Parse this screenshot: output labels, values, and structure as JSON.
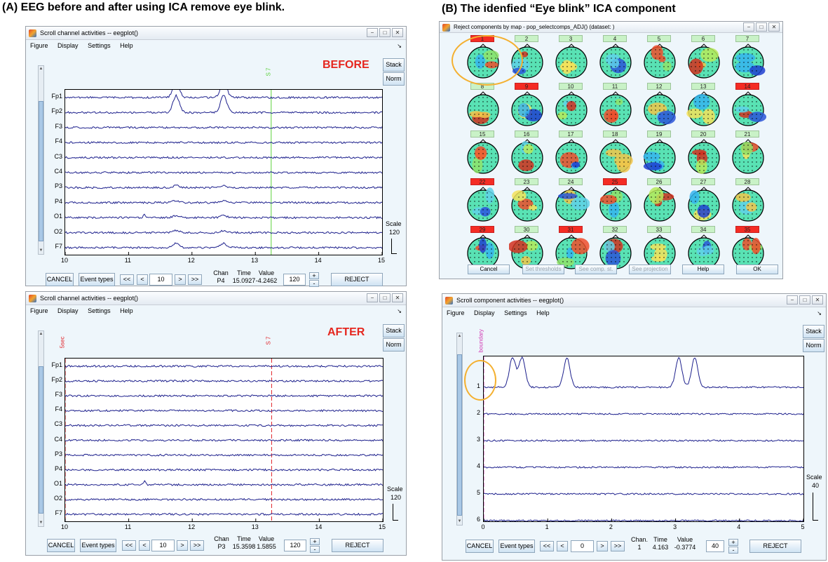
{
  "headings": {
    "a": "(A) EEG before and after using ICA remove eye blink.",
    "b": "(B) The idenfied “Eye blink” ICA component"
  },
  "window_controls": [
    "−",
    "□",
    "✕"
  ],
  "panels": [
    {
      "title": "Scroll channel activities -- eegplot()",
      "menus": [
        "Figure",
        "Display",
        "Settings",
        "Help"
      ],
      "dock": "↘",
      "overlay": "BEFORE",
      "stack_label": "Stack",
      "norm_label": "Norm",
      "channels": [
        "Fp1",
        "Fp2",
        "F3",
        "F4",
        "C3",
        "C4",
        "P3",
        "P4",
        "O1",
        "O2",
        "F7"
      ],
      "x_ticks": [
        "10",
        "11",
        "12",
        "13",
        "14",
        "15"
      ],
      "event_markers": [
        {
          "label": "S 7",
          "time": 13.25,
          "color": "#5bd13b",
          "dashed": false
        }
      ],
      "blinks": [
        11.75,
        12.5
      ],
      "blink_scale": 1.0,
      "scale_label": "Scale",
      "scale_value": "120",
      "cancel_label": "CANCEL",
      "event_types_label": "Event types",
      "nav": [
        "<<",
        "<",
        ">",
        ">>"
      ],
      "position_value": "10",
      "readout": {
        "chan_label": "Chan",
        "time_label": "Time",
        "value_label": "Value",
        "chan": "P4",
        "time": "15.0927",
        "value": "-4.2462"
      },
      "scale_field": "120",
      "plus": "+",
      "minus": "-",
      "reject_label": "REJECT"
    },
    {
      "title": "Scroll channel activities -- eegplot()",
      "menus": [
        "Figure",
        "Display",
        "Settings",
        "Help"
      ],
      "dock": "↘",
      "overlay": "AFTER",
      "stack_label": "Stack",
      "norm_label": "Norm",
      "channels": [
        "Fp1",
        "Fp2",
        "F3",
        "F4",
        "C3",
        "C4",
        "P3",
        "P4",
        "O1",
        "O2",
        "F7"
      ],
      "x_ticks": [
        "10",
        "11",
        "12",
        "13",
        "14",
        "15"
      ],
      "event_markers": [
        {
          "label": "5sec",
          "time": 10.0,
          "color": "#e1262b",
          "dashed": true
        },
        {
          "label": "S 7",
          "time": 13.25,
          "color": "#e1262b",
          "dashed": true
        }
      ],
      "blinks": [],
      "blink_scale": 0.0,
      "scale_label": "Scale",
      "scale_value": "120",
      "cancel_label": "CANCEL",
      "event_types_label": "Event types",
      "nav": [
        "<<",
        "<",
        ">",
        ">>"
      ],
      "position_value": "10",
      "readout": {
        "chan_label": "Chan",
        "time_label": "Time",
        "value_label": "Value",
        "chan": "P3",
        "time": "15.3598",
        "value": "1.5855"
      },
      "scale_field": "120",
      "plus": "+",
      "minus": "-",
      "reject_label": "REJECT"
    },
    {
      "title": "Scroll component activities -- eegplot()",
      "menus": [
        "Figure",
        "Display",
        "Settings",
        "Help"
      ],
      "dock": "↘",
      "overlay": "",
      "stack_label": "Stack",
      "norm_label": "Norm",
      "channels": [
        "1",
        "2",
        "3",
        "4",
        "5",
        "6"
      ],
      "x_ticks": [
        "0",
        "1",
        "2",
        "3",
        "4",
        "5"
      ],
      "event_markers": [
        {
          "label": "boundary",
          "time": 0.0,
          "color": "#d23ab4",
          "dashed": true
        }
      ],
      "blinks": [
        0.45,
        0.6,
        1.3,
        3.05,
        3.3
      ],
      "blink_scale": 2.0,
      "scale_label": "Scale",
      "scale_value": "40",
      "cancel_label": "CANCEL",
      "event_types_label": "Event types",
      "nav": [
        "<<",
        "<",
        ">",
        ">>"
      ],
      "position_value": "0",
      "readout": {
        "chan_label": "Chan.",
        "time_label": "Time",
        "value_label": "Value",
        "chan": "1",
        "time": "4.163",
        "value": "-0.3774"
      },
      "scale_field": "40",
      "plus": "+",
      "minus": "-",
      "reject_label": "REJECT"
    }
  ],
  "reject_window": {
    "title": "Reject components by map - pop_selectcomps_ADJ() (dataset: )",
    "components": [
      {
        "label": "1",
        "status": "reject"
      },
      {
        "label": "2",
        "status": "accept"
      },
      {
        "label": "3",
        "status": "accept"
      },
      {
        "label": "4",
        "status": "accept"
      },
      {
        "label": "5",
        "status": "accept"
      },
      {
        "label": "6",
        "status": "accept"
      },
      {
        "label": "7",
        "status": "accept"
      },
      {
        "label": "8",
        "status": "accept"
      },
      {
        "label": "9",
        "status": "reject"
      },
      {
        "label": "10",
        "status": "accept"
      },
      {
        "label": "11",
        "status": "accept"
      },
      {
        "label": "12",
        "status": "accept"
      },
      {
        "label": "13",
        "status": "accept"
      },
      {
        "label": "14",
        "status": "reject"
      },
      {
        "label": "15",
        "status": "accept"
      },
      {
        "label": "16",
        "status": "accept"
      },
      {
        "label": "17",
        "status": "accept"
      },
      {
        "label": "18",
        "status": "accept"
      },
      {
        "label": "19",
        "status": "accept"
      },
      {
        "label": "20",
        "status": "accept"
      },
      {
        "label": "21",
        "status": "accept"
      },
      {
        "label": "22",
        "status": "reject"
      },
      {
        "label": "23",
        "status": "accept"
      },
      {
        "label": "24",
        "status": "accept"
      },
      {
        "label": "25",
        "status": "reject"
      },
      {
        "label": "26",
        "status": "accept"
      },
      {
        "label": "27",
        "status": "accept"
      },
      {
        "label": "28",
        "status": "accept"
      },
      {
        "label": "29",
        "status": "reject"
      },
      {
        "label": "30",
        "status": "accept"
      },
      {
        "label": "31",
        "status": "reject"
      },
      {
        "label": "32",
        "status": "accept"
      },
      {
        "label": "33",
        "status": "accept"
      },
      {
        "label": "34",
        "status": "accept"
      },
      {
        "label": "35",
        "status": "reject"
      }
    ],
    "buttons": [
      {
        "label": "Cancel",
        "enabled": true
      },
      {
        "label": "Set thresholds",
        "enabled": false
      },
      {
        "label": "See comp. st.",
        "enabled": false
      },
      {
        "label": "See projection",
        "enabled": false
      },
      {
        "label": "Help",
        "enabled": true
      },
      {
        "label": "OK",
        "enabled": true
      }
    ]
  },
  "colors": {
    "trace": "#1c1f8c",
    "reject": "#f42c24",
    "accept": "#c9f2c7",
    "overlay_text": "#e5261e",
    "highlight_circle": "#f4b030"
  }
}
